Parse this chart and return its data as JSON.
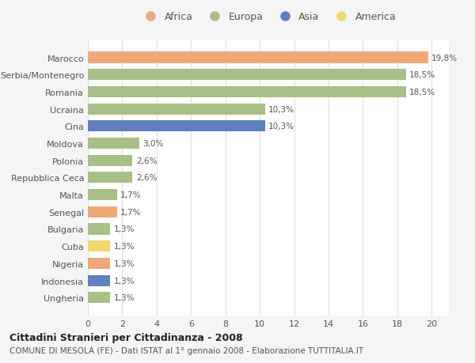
{
  "countries": [
    "Marocco",
    "Serbia/Montenegro",
    "Romania",
    "Ucraina",
    "Cina",
    "Moldova",
    "Polonia",
    "Repubblica Ceca",
    "Malta",
    "Senegal",
    "Bulgaria",
    "Cuba",
    "Nigeria",
    "Indonesia",
    "Ungheria"
  ],
  "values": [
    19.8,
    18.5,
    18.5,
    10.3,
    10.3,
    3.0,
    2.6,
    2.6,
    1.7,
    1.7,
    1.3,
    1.3,
    1.3,
    1.3,
    1.3
  ],
  "labels": [
    "19,8%",
    "18,5%",
    "18,5%",
    "10,3%",
    "10,3%",
    "3,0%",
    "2,6%",
    "2,6%",
    "1,7%",
    "1,7%",
    "1,3%",
    "1,3%",
    "1,3%",
    "1,3%",
    "1,3%"
  ],
  "colors": [
    "#f0a878",
    "#a8bf88",
    "#a8bf88",
    "#a8bf88",
    "#6080c0",
    "#a8bf88",
    "#a8bf88",
    "#a8bf88",
    "#a8bf88",
    "#f0a878",
    "#a8bf88",
    "#f0d870",
    "#f0a878",
    "#6080c0",
    "#a8bf88"
  ],
  "legend_labels": [
    "Africa",
    "Europa",
    "Asia",
    "America"
  ],
  "legend_colors": [
    "#f0a878",
    "#a8bf88",
    "#6080c0",
    "#f0d870"
  ],
  "title": "Cittadini Stranieri per Cittadinanza - 2008",
  "subtitle": "COMUNE DI MESOLA (FE) - Dati ISTAT al 1° gennaio 2008 - Elaborazione TUTTITALIA.IT",
  "xlim": [
    0,
    21
  ],
  "xticks": [
    0,
    2,
    4,
    6,
    8,
    10,
    12,
    14,
    16,
    18,
    20
  ],
  "bg_color": "#f5f5f5",
  "bar_bg_color": "#ffffff",
  "grid_color": "#e0e0e0"
}
